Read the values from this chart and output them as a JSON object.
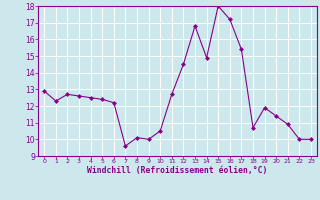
{
  "x": [
    0,
    1,
    2,
    3,
    4,
    5,
    6,
    7,
    8,
    9,
    10,
    11,
    12,
    13,
    14,
    15,
    16,
    17,
    18,
    19,
    20,
    21,
    22,
    23
  ],
  "y": [
    12.9,
    12.3,
    12.7,
    12.6,
    12.5,
    12.4,
    12.2,
    9.6,
    10.1,
    10.0,
    10.5,
    12.7,
    14.5,
    16.8,
    14.9,
    18.0,
    17.2,
    15.4,
    10.7,
    11.9,
    11.4,
    10.9,
    10.0,
    10.0
  ],
  "line_color": "#880088",
  "marker": "D",
  "marker_size": 2.0,
  "bg_color": "#cce8ed",
  "grid_color": "#ffffff",
  "xlabel": "Windchill (Refroidissement éolien,°C)",
  "xlabel_color": "#880088",
  "tick_color": "#880088",
  "ylim": [
    9,
    18
  ],
  "yticks": [
    9,
    10,
    11,
    12,
    13,
    14,
    15,
    16,
    17,
    18
  ],
  "xticks": [
    0,
    1,
    2,
    3,
    4,
    5,
    6,
    7,
    8,
    9,
    10,
    11,
    12,
    13,
    14,
    15,
    16,
    17,
    18,
    19,
    20,
    21,
    22,
    23
  ],
  "spine_color": "#880088",
  "line_width": 0.8
}
